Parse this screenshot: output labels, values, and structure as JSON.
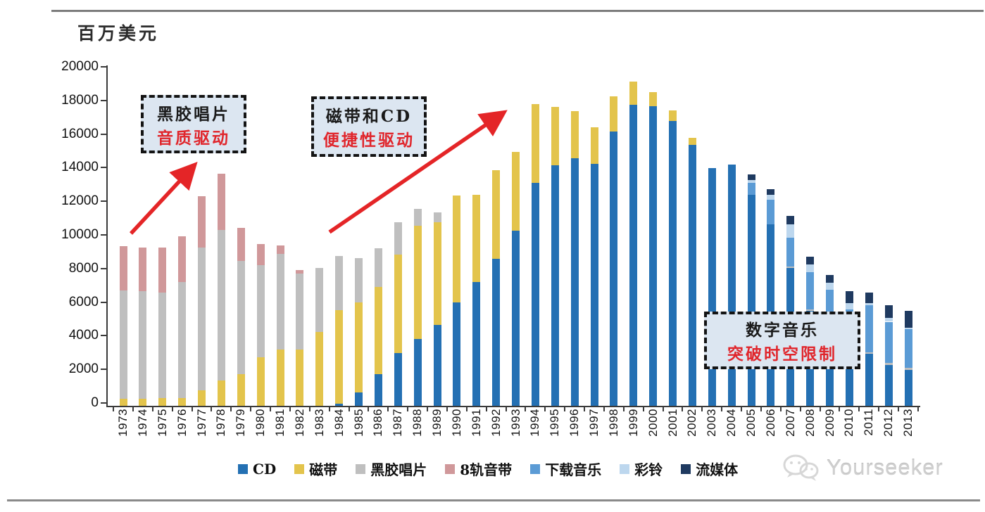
{
  "page": {
    "unit_label": "百万美元"
  },
  "annotations": [
    {
      "line1": "黑胶唱片",
      "line2": "音质驱动",
      "text_color": "#1a1a1a",
      "accent_color": "#E0262C",
      "fill": "#DCE6F1"
    },
    {
      "line1": "磁带和CD",
      "line2": "便捷性驱动",
      "text_color": "#1a1a1a",
      "accent_color": "#E0262C",
      "fill": "#DCE6F1"
    },
    {
      "line1": "数字音乐",
      "line2": "突破时空限制",
      "text_color": "#1a1a1a",
      "accent_color": "#E0262C",
      "fill": "#DCE6F1"
    }
  ],
  "arrow_color": "#E42527",
  "watermark": {
    "text": "Yourseeker",
    "icon": "wechat-icon",
    "color": "#cfcfcf"
  },
  "chart_data": {
    "type": "bar",
    "stacked": true,
    "title": "",
    "unit": "百万美元",
    "xlabel": "",
    "ylabel": "百万美元",
    "ylim": [
      0,
      20000
    ],
    "y_ticks": [
      0,
      2000,
      4000,
      6000,
      8000,
      10000,
      12000,
      14000,
      16000,
      18000,
      20000
    ],
    "grid": false,
    "legend_position": "bottom",
    "categories": [
      1973,
      1974,
      1975,
      1976,
      1977,
      1978,
      1979,
      1980,
      1981,
      1982,
      1983,
      1984,
      1985,
      1986,
      1987,
      1988,
      1989,
      1990,
      1991,
      1992,
      1993,
      1994,
      1995,
      1996,
      1997,
      1998,
      1999,
      2000,
      2001,
      2002,
      2003,
      2004,
      2005,
      2006,
      2007,
      2008,
      2009,
      2010,
      2011,
      2012,
      2013
    ],
    "series": [
      {
        "name": "CD",
        "color": "#2470B3",
        "values": [
          0,
          0,
          0,
          0,
          0,
          0,
          0,
          0,
          0,
          0,
          0,
          120,
          780,
          1870,
          3120,
          3990,
          4800,
          6160,
          7350,
          8730,
          10400,
          13260,
          14310,
          14730,
          14380,
          16330,
          17900,
          17840,
          16960,
          15540,
          14140,
          14350,
          12540,
          10800,
          8200,
          5650,
          4900,
          3650,
          3100,
          2440,
          2150
        ]
      },
      {
        "name": "磁带",
        "color": "#E3C44C",
        "values": [
          400,
          420,
          450,
          450,
          900,
          1500,
          1870,
          2890,
          3360,
          3330,
          4380,
          5580,
          5380,
          5200,
          5860,
          6730,
          6130,
          6340,
          5200,
          5270,
          4700,
          4690,
          3490,
          2820,
          2200,
          2070,
          1400,
          830,
          600,
          390,
          0,
          0,
          0,
          0,
          0,
          0,
          0,
          0,
          0,
          0,
          0
        ]
      },
      {
        "name": "黑胶唱片",
        "color": "#BFBFBF",
        "values": [
          6450,
          6380,
          6300,
          6900,
          8500,
          8950,
          6760,
          5460,
          5690,
          4520,
          3830,
          3200,
          2610,
          2300,
          1950,
          980,
          560,
          0,
          0,
          0,
          0,
          0,
          0,
          0,
          0,
          0,
          0,
          0,
          0,
          0,
          0,
          0,
          0,
          0,
          80,
          80,
          70,
          0,
          90,
          120,
          110
        ]
      },
      {
        "name": "8轨音带",
        "color": "#D0989A",
        "values": [
          2650,
          2600,
          2650,
          2750,
          3050,
          3350,
          1950,
          1280,
          500,
          220,
          0,
          0,
          0,
          0,
          0,
          0,
          0,
          0,
          0,
          0,
          0,
          0,
          0,
          0,
          0,
          0,
          0,
          0,
          0,
          0,
          0,
          0,
          0,
          0,
          0,
          0,
          0,
          0,
          0,
          0,
          0
        ]
      },
      {
        "name": "下载音乐",
        "color": "#5B9BD5",
        "values": [
          0,
          0,
          0,
          0,
          0,
          0,
          0,
          0,
          0,
          0,
          0,
          0,
          0,
          0,
          0,
          0,
          0,
          0,
          0,
          0,
          0,
          0,
          0,
          0,
          0,
          0,
          0,
          0,
          0,
          0,
          0,
          0,
          740,
          1470,
          1740,
          2200,
          1950,
          2100,
          2790,
          2440,
          2290
        ]
      },
      {
        "name": "彩铃",
        "color": "#BDD7EE",
        "values": [
          0,
          0,
          0,
          0,
          0,
          0,
          0,
          0,
          0,
          0,
          0,
          0,
          0,
          0,
          0,
          0,
          0,
          0,
          0,
          0,
          0,
          0,
          0,
          0,
          0,
          0,
          0,
          0,
          0,
          0,
          0,
          0,
          170,
          280,
          770,
          500,
          400,
          350,
          140,
          210,
          100
        ]
      },
      {
        "name": "流媒体",
        "color": "#1F3A60",
        "values": [
          0,
          0,
          0,
          0,
          0,
          0,
          0,
          0,
          0,
          0,
          0,
          0,
          0,
          0,
          0,
          0,
          0,
          0,
          0,
          0,
          0,
          0,
          0,
          0,
          0,
          0,
          0,
          0,
          0,
          0,
          0,
          0,
          300,
          350,
          490,
          450,
          450,
          700,
          630,
          770,
          990
        ]
      }
    ]
  }
}
